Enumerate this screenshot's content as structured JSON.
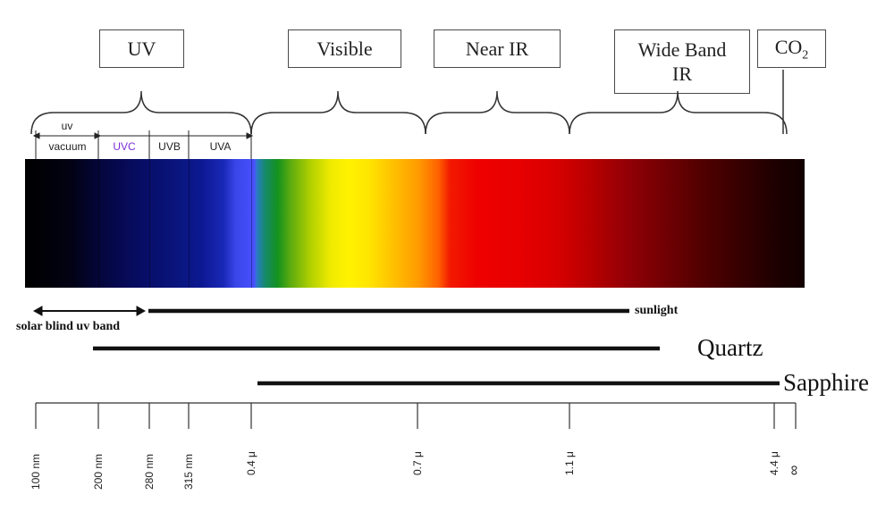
{
  "bands": {
    "uv": "UV",
    "visible": "Visible",
    "near_ir": "Near IR",
    "wide_band_ir": "Wide Band IR",
    "co2_main": "CO",
    "co2_sub": "2"
  },
  "uv_subbands": {
    "uv": "uv",
    "vacuum": "vacuum",
    "uvc": "UVC",
    "uvb": "UVB",
    "uva": "UVA"
  },
  "ranges": {
    "solar_blind": "solar blind uv band",
    "sunlight": "sunlight",
    "quartz": "Quartz",
    "sapphire": "Sapphire"
  },
  "axis_ticks": [
    "100 nm",
    "200 nm",
    "280 nm",
    "315 nm",
    "0.4 μ",
    "0.7 μ",
    "1.1 μ",
    "4.4 μ",
    "∞"
  ],
  "colors": {
    "uvc_label": "#7b2fd6",
    "line": "#111111",
    "box_border": "#4a4a4a"
  }
}
